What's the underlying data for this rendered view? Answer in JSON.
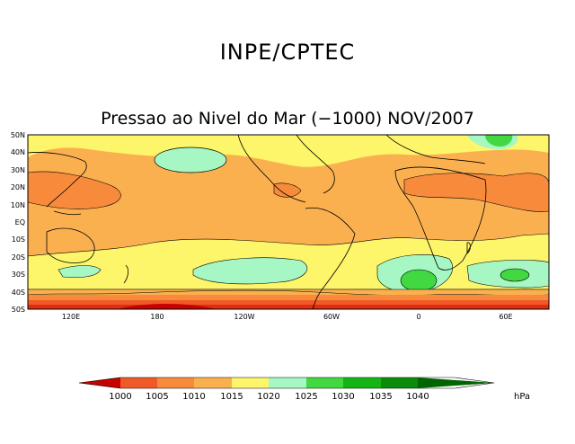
{
  "header": {
    "title": "INPE/CPTEC",
    "subtitle": "Pressao ao Nivel do Mar (−1000) NOV/2007"
  },
  "map": {
    "lat_labels": [
      "50N",
      "40N",
      "30N",
      "20N",
      "10N",
      "EQ",
      "10S",
      "20S",
      "30S",
      "40S",
      "50S"
    ],
    "lon_labels": [
      "120E",
      "180",
      "120W",
      "60W",
      "0",
      "60E"
    ]
  },
  "colorbar": {
    "levels": [
      "1000",
      "1005",
      "1010",
      "1015",
      "1020",
      "1025",
      "1030",
      "1035",
      "1040"
    ],
    "unit": "hPa",
    "colors": [
      "#c80000",
      "#f05a28",
      "#f88a3c",
      "#fbb050",
      "#fdf56a",
      "#a6f7c3",
      "#41d841",
      "#15b415",
      "#0a8c0a",
      "#006400"
    ]
  }
}
